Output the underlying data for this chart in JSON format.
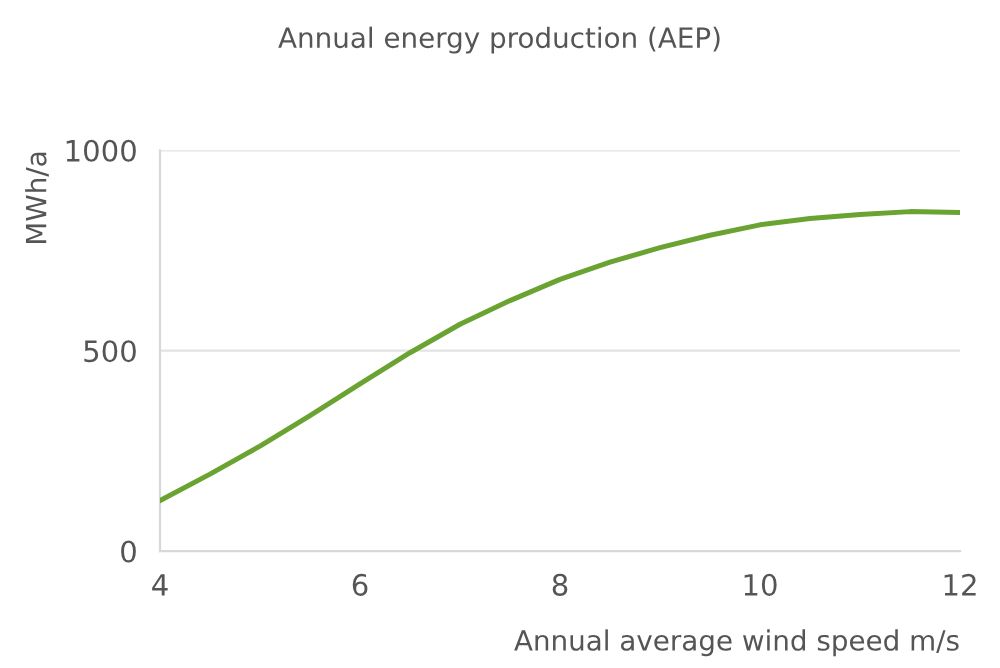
{
  "chart_data": {
    "type": "line",
    "title": "Annual energy production (AEP)",
    "xlabel": "Annual average wind speed m/s",
    "ylabel": "MWh/a",
    "x": [
      4,
      4.5,
      5,
      5.5,
      6,
      6.5,
      7,
      7.5,
      8,
      8.5,
      9,
      9.5,
      10,
      10.5,
      11,
      11.5,
      12
    ],
    "series": [
      {
        "color": "#6aa332",
        "values": [
          126,
          192,
          262,
          338,
          417,
          495,
          566,
          625,
          678,
          721,
          757,
          788,
          814,
          830,
          840,
          847,
          845
        ]
      }
    ],
    "xlim": [
      4,
      12
    ],
    "xticks": [
      4,
      6,
      8,
      10,
      12
    ],
    "ylim": [
      0,
      1000
    ],
    "yticks": [
      0,
      500,
      1000
    ],
    "grid": "y",
    "marker": "none",
    "line_style": "solid",
    "legend": false
  }
}
